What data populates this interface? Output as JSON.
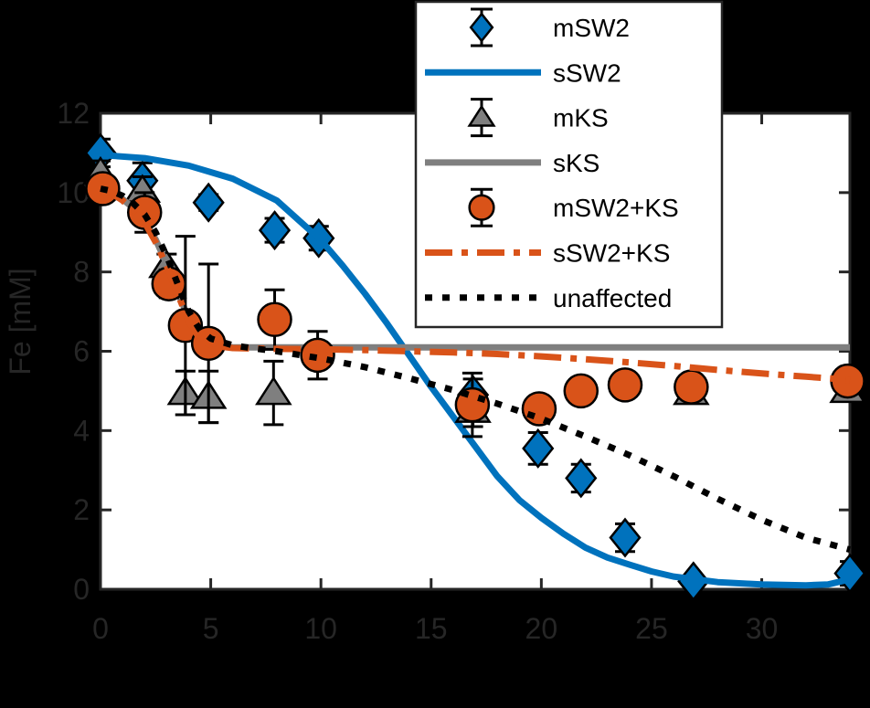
{
  "chart_data": {
    "type": "line+scatter",
    "title": "",
    "xlabel": "",
    "ylabel": "Fe [mM]",
    "xlim": [
      0,
      34
    ],
    "ylim": [
      0,
      12
    ],
    "xticks": [
      0,
      5,
      10,
      15,
      20,
      25,
      30
    ],
    "yticks": [
      0,
      2,
      4,
      6,
      8,
      10,
      12
    ],
    "grid": false,
    "colors": {
      "background": "#000000",
      "plot_background": "#ffffff",
      "axis": "#262626",
      "blue": "#0072BD",
      "orange": "#D95319",
      "gray": "#7F7F7F",
      "errorbar": "#000000"
    },
    "legend": {
      "position": "top-center",
      "background": "#ffffff",
      "border_color": "#262626"
    },
    "series": [
      {
        "name": "mSW2",
        "kind": "scatter",
        "marker": "diamond",
        "color": "#0072BD",
        "points": [
          [
            0,
            11.0,
            0.35
          ],
          [
            1.9,
            10.3,
            0.45
          ],
          [
            4.9,
            9.75,
            0.2
          ],
          [
            7.9,
            9.05,
            0.3
          ],
          [
            9.9,
            8.85,
            0.3
          ],
          [
            16.9,
            4.9,
            0.4
          ],
          [
            19.85,
            3.55,
            0.4
          ],
          [
            21.8,
            2.8,
            0.35
          ],
          [
            23.8,
            1.3,
            0.35
          ],
          [
            26.9,
            0.2,
            0.1
          ],
          [
            34,
            0.4,
            0.3
          ]
        ]
      },
      {
        "name": "sSW2",
        "kind": "line",
        "style": "solid",
        "color": "#0072BD",
        "x": [
          0,
          2,
          4,
          6,
          8,
          10,
          11,
          12,
          13,
          14,
          15,
          16,
          17,
          18,
          19,
          20,
          21,
          22,
          23,
          24,
          25,
          26,
          28,
          30,
          32,
          33,
          34
        ],
        "y": [
          10.95,
          10.87,
          10.68,
          10.35,
          9.8,
          8.8,
          8.15,
          7.45,
          6.7,
          5.9,
          5.1,
          4.35,
          3.6,
          2.85,
          2.25,
          1.8,
          1.4,
          1.05,
          0.8,
          0.62,
          0.45,
          0.32,
          0.18,
          0.12,
          0.1,
          0.12,
          0.25
        ]
      },
      {
        "name": "mKS",
        "kind": "scatter",
        "marker": "triangle",
        "color": "#7F7F7F",
        "points": [
          [
            0,
            10.5,
            0.3
          ],
          [
            1.9,
            10.05,
            0.35
          ],
          [
            3.0,
            8.15,
            0.3
          ],
          [
            3.85,
            4.95,
            0.55
          ],
          [
            4.9,
            4.85,
            0.65
          ],
          [
            7.85,
            4.95,
            0.8
          ],
          [
            16.9,
            4.5,
            0.4
          ],
          [
            26.8,
            4.95,
            0.2
          ],
          [
            33.9,
            5.0,
            0.2
          ]
        ]
      },
      {
        "name": "sKS",
        "kind": "line",
        "style": "solid",
        "color": "#7F7F7F",
        "x": [
          0,
          0.5,
          1,
          1.5,
          2,
          2.5,
          3,
          3.5,
          4,
          4.5,
          5,
          6,
          34
        ],
        "y": [
          10.05,
          9.99,
          9.84,
          9.6,
          9.3,
          8.82,
          8.2,
          7.5,
          6.82,
          6.37,
          6.18,
          6.1,
          6.1
        ]
      },
      {
        "name": "mSW2+KS",
        "kind": "scatter",
        "marker": "circle",
        "color": "#D95319",
        "points": [
          [
            0.1,
            10.1,
            0.3
          ],
          [
            2.0,
            9.5,
            0.5
          ],
          [
            3.1,
            7.7,
            0.35
          ],
          [
            3.85,
            6.65,
            2.25
          ],
          [
            4.9,
            6.2,
            2.0
          ],
          [
            7.9,
            6.8,
            0.75
          ],
          [
            9.85,
            5.9,
            0.6
          ],
          [
            16.87,
            4.65,
            0.8
          ],
          [
            19.9,
            4.55,
            0.2
          ],
          [
            21.8,
            5.0,
            0.2
          ],
          [
            23.8,
            5.15,
            0.2
          ],
          [
            26.8,
            5.1,
            0.3
          ],
          [
            33.9,
            5.25,
            0.25
          ]
        ]
      },
      {
        "name": "sSW2+KS",
        "kind": "line",
        "style": "dashdot",
        "color": "#D95319",
        "x": [
          0,
          0.5,
          1,
          1.5,
          2,
          2.5,
          3,
          3.5,
          4,
          4.5,
          5,
          6,
          8,
          10,
          12,
          14,
          16,
          18,
          20,
          22,
          24,
          26,
          28,
          30,
          32,
          34
        ],
        "y": [
          10.05,
          9.98,
          9.8,
          9.55,
          9.25,
          8.75,
          8.15,
          7.45,
          6.75,
          6.32,
          6.15,
          6.08,
          6.06,
          6.05,
          6.03,
          6.0,
          5.97,
          5.93,
          5.87,
          5.8,
          5.72,
          5.63,
          5.53,
          5.44,
          5.36,
          5.28
        ]
      },
      {
        "name": "unaffected",
        "kind": "line",
        "style": "dotted",
        "color": "#000000",
        "x": [
          0,
          0.5,
          1,
          1.5,
          2,
          2.5,
          3,
          3.5,
          4,
          4.5,
          5,
          6,
          7,
          8,
          10,
          12,
          14,
          16,
          18,
          20,
          22,
          24,
          26,
          28,
          30,
          32,
          34
        ],
        "y": [
          10.1,
          10.04,
          9.92,
          9.72,
          9.45,
          9.0,
          8.4,
          7.7,
          7.0,
          6.55,
          6.32,
          6.15,
          6.07,
          6.0,
          5.82,
          5.6,
          5.32,
          5.02,
          4.68,
          4.3,
          3.85,
          3.38,
          2.85,
          2.28,
          1.75,
          1.3,
          1.0
        ]
      }
    ]
  }
}
